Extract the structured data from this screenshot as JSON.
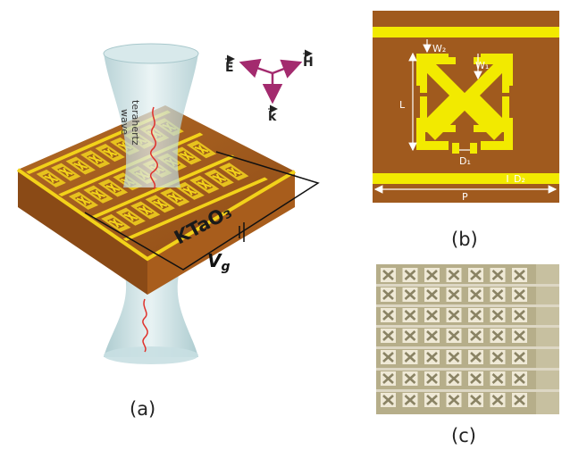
{
  "panel_a": {
    "caption": "(a)",
    "substrate_label": "KTaO₃",
    "gate_voltage_main": "V",
    "gate_voltage_sub": "g",
    "wave_label_line1": "terahertz",
    "wave_label_line2": "wave",
    "axes": {
      "e_field": "E",
      "h_field": "H",
      "k_vector": "k"
    },
    "colors": {
      "substrate": "#a05a1e",
      "metal": "#f2d21a",
      "beam": "#b9d5d9",
      "wave": "#e0302a",
      "axis_arrow": "#a32a6e"
    }
  },
  "panel_b": {
    "caption": "(b)",
    "labels": {
      "w2": "W₂",
      "w1": "W₁",
      "l": "L",
      "d1": "D₁",
      "d2": "D₂",
      "p": "P"
    },
    "colors": {
      "background": "#a05a1e",
      "metal": "#f2ea00",
      "dimension": "#ffffff"
    }
  },
  "panel_c": {
    "caption": "(c)",
    "colors": {
      "background": "#b6ae8a",
      "bus": "#ddd7c4",
      "cell": "#efe9d6",
      "pattern": "#8a8364"
    }
  }
}
